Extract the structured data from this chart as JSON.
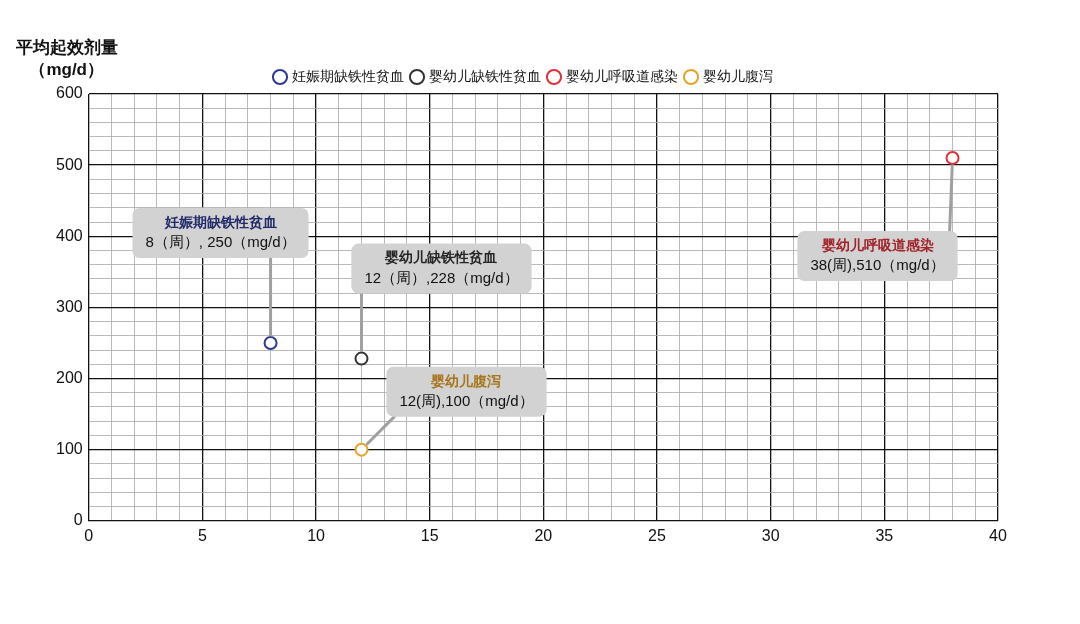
{
  "chart_data": {
    "type": "scatter",
    "ylabel": "平均起效剂量（mg/d）",
    "series": [
      {
        "name": "妊娠期缺铁性贫血",
        "color": "#2e3a91",
        "x": [
          8
        ],
        "values": [
          250
        ]
      },
      {
        "name": "婴幼儿缺铁性贫血",
        "color": "#333333",
        "x": [
          12
        ],
        "values": [
          228
        ]
      },
      {
        "name": "婴幼儿呼吸道感染",
        "color": "#e0303a",
        "x": [
          38
        ],
        "values": [
          510
        ]
      },
      {
        "name": "婴幼儿腹泻",
        "color": "#e8a226",
        "x": [
          12
        ],
        "values": [
          100
        ]
      }
    ],
    "xlim": [
      0,
      40
    ],
    "xticks": [
      0,
      {
        "value": 1,
        "label": null
      },
      {
        "value": 2,
        "label": null
      },
      {
        "value": 3,
        "label": null
      },
      {
        "value": 4,
        "label": null
      },
      5,
      {
        "value": 6,
        "label": null
      },
      {
        "value": 7,
        "label": null
      },
      {
        "value": 8,
        "label": null
      },
      {
        "value": 9,
        "label": null
      },
      10,
      {
        "value": 11,
        "label": null
      },
      {
        "value": 12,
        "label": null
      },
      {
        "value": 13,
        "label": null
      },
      {
        "value": 14,
        "label": null
      },
      15,
      {
        "value": 16,
        "label": null
      },
      {
        "value": 17,
        "label": null
      },
      {
        "value": 18,
        "label": null
      },
      {
        "value": 19,
        "label": null
      },
      20,
      {
        "value": 21,
        "label": null
      },
      {
        "value": 22,
        "label": null
      },
      {
        "value": 23,
        "label": null
      },
      {
        "value": 24,
        "label": null
      },
      25,
      {
        "value": 26,
        "label": null
      },
      {
        "value": 27,
        "label": null
      },
      {
        "value": 28,
        "label": null
      },
      {
        "value": 29,
        "label": null
      },
      30,
      {
        "value": 31,
        "label": null
      },
      {
        "value": 32,
        "label": null
      },
      {
        "value": 33,
        "label": null
      },
      {
        "value": 34,
        "label": null
      },
      35,
      {
        "value": 36,
        "label": null
      },
      {
        "value": 37,
        "label": null
      },
      {
        "value": 38,
        "label": null
      },
      {
        "value": 39,
        "label": null
      },
      40
    ],
    "ylim": [
      0,
      600
    ],
    "yticks": [
      0,
      {
        "value": 20,
        "label": null
      },
      {
        "value": 40,
        "label": null
      },
      {
        "value": 60,
        "label": null
      },
      {
        "value": 80,
        "label": null
      },
      100,
      {
        "value": 120,
        "label": null
      },
      {
        "value": 140,
        "label": null
      },
      {
        "value": 160,
        "label": null
      },
      {
        "value": 180,
        "label": null
      },
      200,
      {
        "value": 220,
        "label": null
      },
      {
        "value": 240,
        "label": null
      },
      {
        "value": 260,
        "label": null
      },
      {
        "value": 280,
        "label": null
      },
      300,
      {
        "value": 320,
        "label": null
      },
      {
        "value": 340,
        "label": null
      },
      {
        "value": 360,
        "label": null
      },
      {
        "value": 380,
        "label": null
      },
      400,
      {
        "value": 420,
        "label": null
      },
      {
        "value": 440,
        "label": null
      },
      {
        "value": 460,
        "label": null
      },
      {
        "value": 480,
        "label": null
      },
      500,
      {
        "value": 520,
        "label": null
      },
      {
        "value": 540,
        "label": null
      },
      {
        "value": 560,
        "label": null
      },
      {
        "value": 580,
        "label": null
      },
      600
    ],
    "grid": true,
    "legend": "top",
    "marker": "circle",
    "annotations": [
      {
        "text": "妊娠期缺铁性贫血\n8（周）, 250（mg/d）",
        "x": 8,
        "y": 250
      },
      {
        "text": "婴幼儿缺铁性贫血\n12（周）,228（mg/d）",
        "x": 12,
        "y": 228
      },
      {
        "text": "婴幼儿腹泻\n12(周),100（mg/d）",
        "x": 12,
        "y": 100
      },
      {
        "text": "婴幼儿呼吸道感染\n38(周),510（mg/d）",
        "x": 38,
        "y": 510
      }
    ]
  }
}
